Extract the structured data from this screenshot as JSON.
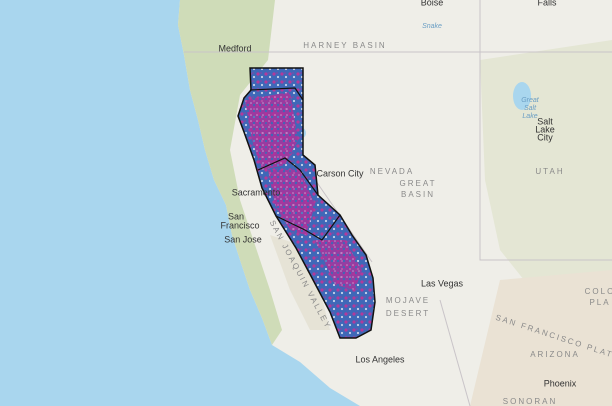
{
  "labels": [
    {
      "text": "Boise",
      "kind": "city"
    },
    {
      "text": "Falls",
      "kind": "city"
    },
    {
      "text": "Snake",
      "kind": "water"
    },
    {
      "text": "HARNEY BASIN",
      "kind": "region"
    },
    {
      "text": "Medford",
      "kind": "city"
    },
    {
      "text": "Carson City",
      "kind": "city"
    },
    {
      "text": "NEVADA",
      "kind": "region"
    },
    {
      "text": "GREAT",
      "kind": "region"
    },
    {
      "text": "BASIN",
      "kind": "region"
    },
    {
      "text": "UTAH",
      "kind": "region"
    },
    {
      "text": "Great",
      "kind": "water"
    },
    {
      "text": "Salt",
      "kind": "water"
    },
    {
      "text": "Lake",
      "kind": "water"
    },
    {
      "text": "Salt",
      "kind": "city"
    },
    {
      "text": "Lake",
      "kind": "city"
    },
    {
      "text": "City",
      "kind": "city"
    },
    {
      "text": "Sacramento",
      "kind": "city"
    },
    {
      "text": "San",
      "kind": "city"
    },
    {
      "text": "Francisco",
      "kind": "city"
    },
    {
      "text": "San Jose",
      "kind": "city"
    },
    {
      "text": "SAN JOAQUIN VALLEY",
      "kind": "region"
    },
    {
      "text": "MOJAVE",
      "kind": "region"
    },
    {
      "text": "DESERT",
      "kind": "region"
    },
    {
      "text": "Las Vegas",
      "kind": "city"
    },
    {
      "text": "Los Angeles",
      "kind": "city"
    },
    {
      "text": "ARIZONA",
      "kind": "region"
    },
    {
      "text": "SAN FRANCISCO PLATEAU",
      "kind": "region"
    },
    {
      "text": "COLO",
      "kind": "region"
    },
    {
      "text": "PLA",
      "kind": "region"
    },
    {
      "text": "Phoenix",
      "kind": "city"
    },
    {
      "text": "SONORAN",
      "kind": "region"
    }
  ]
}
